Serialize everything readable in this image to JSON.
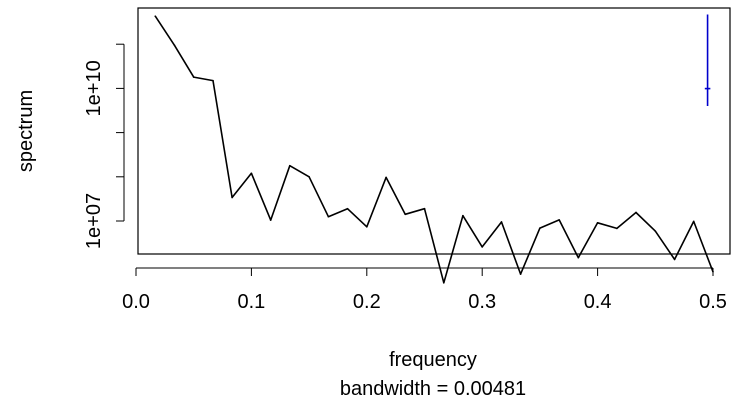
{
  "chart_data": {
    "type": "line",
    "scale": "log10-y",
    "xlim": [
      0.0,
      0.5
    ],
    "ylim": [
      1000000.0,
      1000000000000.0
    ],
    "xticks": [
      0.0,
      0.1,
      0.2,
      0.3,
      0.4,
      0.5
    ],
    "xtick_labels": [
      "0.0",
      "0.1",
      "0.2",
      "0.3",
      "0.4",
      "0.5"
    ],
    "yticks": [
      10000000.0,
      100000000.0,
      1000000000.0,
      10000000000.0,
      100000000000.0
    ],
    "ytick_labels": [
      "1e+07",
      "",
      "",
      "1e+10",
      ""
    ],
    "xlabel": "frequency",
    "sublabel": "bandwidth = 0.00481",
    "ylabel": "spectrum",
    "grid": false,
    "series": [
      {
        "color": "#000000",
        "x": [
          0.0167,
          0.0333,
          0.05,
          0.0667,
          0.0833,
          0.1,
          0.1167,
          0.1333,
          0.15,
          0.1667,
          0.1833,
          0.2,
          0.2167,
          0.2333,
          0.25,
          0.2667,
          0.2833,
          0.3,
          0.3167,
          0.3333,
          0.35,
          0.3667,
          0.3833,
          0.4,
          0.4167,
          0.4333,
          0.45,
          0.4667,
          0.4833,
          0.5
        ],
        "y": [
          430000000000.0,
          95000000000.0,
          18000000000.0,
          15000000000.0,
          34000000.0,
          120000000.0,
          10500000.0,
          178000000.0,
          100000000.0,
          12500000.0,
          19000000.0,
          7400000.0,
          97000000.0,
          14200000.0,
          19000000.0,
          400000.0,
          13200000.0,
          2600000.0,
          9500000.0,
          630000.0,
          6900000.0,
          10600000.0,
          1480000.0,
          9100000.0,
          6800000.0,
          15600000.0,
          5900000.0,
          1350000.0,
          9800000.0,
          710000.0
        ]
      }
    ],
    "bandwidth_marker": {
      "color": "#0000cc",
      "x": 0.4953,
      "y_low": 4000000000.0,
      "y_high": 470000000000.0,
      "y_center": 9900000000.0,
      "half_width": 0.0024
    }
  }
}
